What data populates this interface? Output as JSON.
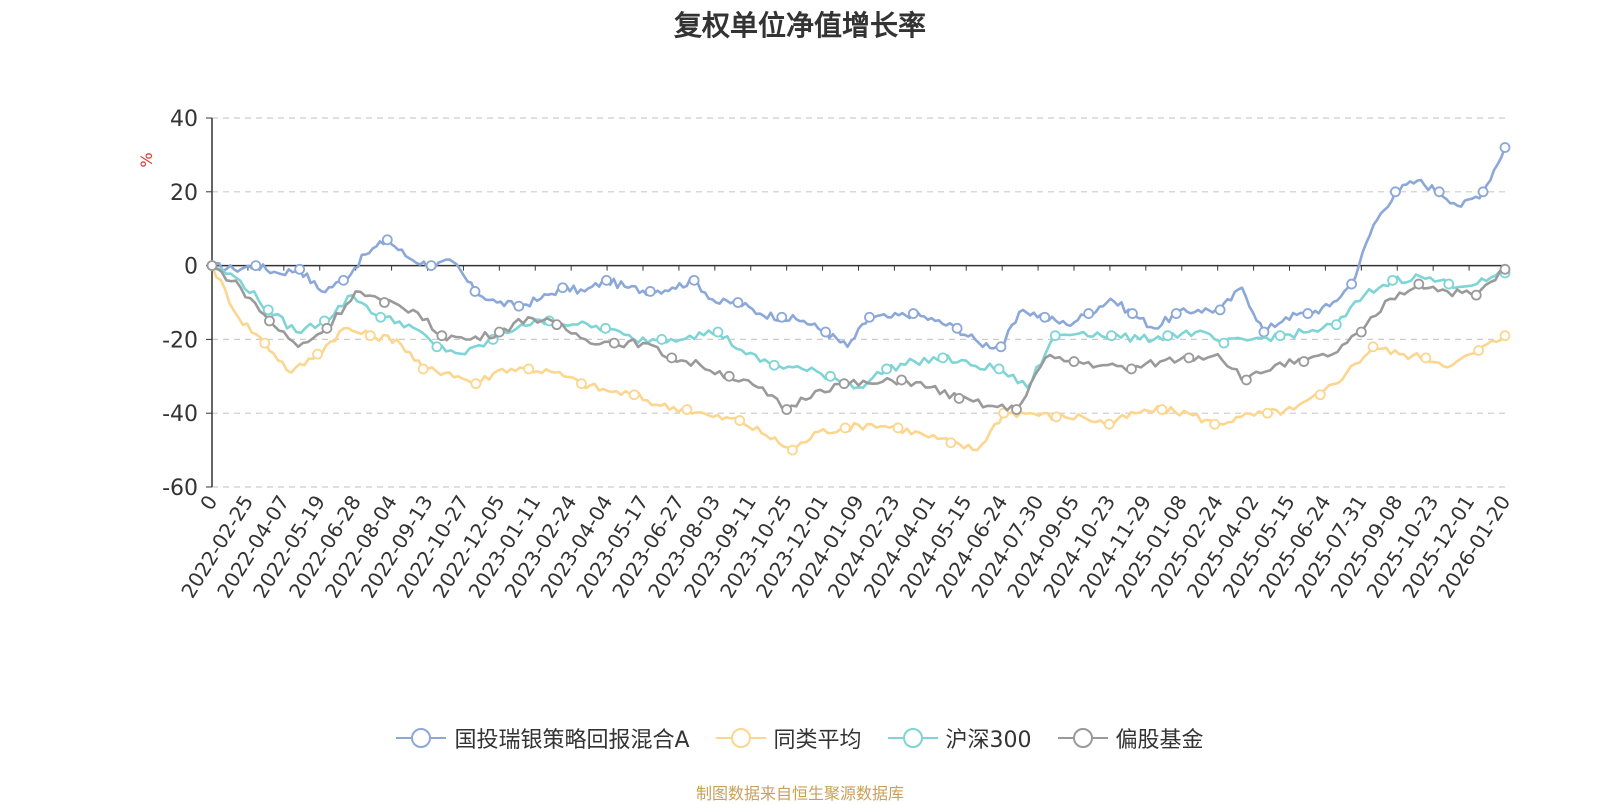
{
  "chart_data": {
    "type": "line",
    "title": "复权单位净值增长率",
    "ylabel": "%",
    "xlabel": "",
    "ylim": [
      -60,
      40
    ],
    "yticks": [
      40,
      20,
      0,
      -20,
      -40,
      -60
    ],
    "xtick_labels": [
      "0",
      "2022-02-25",
      "2022-04-07",
      "2022-05-19",
      "2022-06-28",
      "2022-08-04",
      "2022-09-13",
      "2022-10-27",
      "2022-12-05",
      "2023-01-11",
      "2023-02-24",
      "2023-04-04",
      "2023-05-17",
      "2023-06-27",
      "2023-08-03",
      "2023-09-11",
      "2023-10-25",
      "2023-12-01",
      "2024-01-09",
      "2024-02-23",
      "2024-04-01",
      "2024-05-15",
      "2024-06-24",
      "2024-07-30",
      "2024-09-05",
      "2024-10-23",
      "2024-11-29",
      "2025-01-08",
      "2025-02-24",
      "2025-04-02",
      "2025-05-15",
      "2025-06-24",
      "2025-07-31",
      "2025-09-08",
      "2025-10-23",
      "2025-12-01",
      "2026-01-20"
    ],
    "grid": true,
    "legend_position": "bottom",
    "series": [
      {
        "name": "国投瑞银策略回报混合A",
        "color": "#8ca8d8",
        "values": [
          0,
          -1,
          0,
          -2,
          -1,
          -7,
          -4,
          3,
          7,
          2,
          0,
          1,
          -7,
          -10,
          -11,
          -9,
          -6,
          -7,
          -4,
          -6,
          -7,
          -6,
          -4,
          -10,
          -10,
          -13,
          -14,
          -15,
          -18,
          -22,
          -14,
          -14,
          -13,
          -15,
          -17,
          -21,
          -22,
          -12,
          -14,
          -16,
          -13,
          -9,
          -13,
          -17,
          -13,
          -12,
          -12,
          -6,
          -18,
          -14,
          -13,
          -11,
          -5,
          11,
          20,
          23,
          20,
          16,
          20,
          32
        ]
      },
      {
        "name": "同类平均",
        "color": "#fcd68f",
        "values": [
          0,
          -14,
          -21,
          -29,
          -24,
          -17,
          -19,
          -20,
          -28,
          -29,
          -32,
          -28,
          -28,
          -29,
          -32,
          -34,
          -35,
          -38,
          -39,
          -41,
          -42,
          -46,
          -50,
          -45,
          -44,
          -43,
          -44,
          -46,
          -48,
          -50,
          -40,
          -40,
          -41,
          -41,
          -43,
          -40,
          -39,
          -40,
          -43,
          -41,
          -40,
          -39,
          -35,
          -29,
          -22,
          -24,
          -25,
          -27,
          -23,
          -19
        ]
      },
      {
        "name": "沪深300",
        "color": "#7fd4d6",
        "values": [
          0,
          -4,
          -12,
          -18,
          -15,
          -8,
          -14,
          -16,
          -22,
          -24,
          -20,
          -16,
          -15,
          -16,
          -17,
          -20,
          -20,
          -19,
          -18,
          -24,
          -27,
          -28,
          -30,
          -33,
          -28,
          -26,
          -25,
          -27,
          -28,
          -33,
          -19,
          -18,
          -19,
          -20,
          -19,
          -18,
          -21,
          -20,
          -19,
          -18,
          -16,
          -8,
          -4,
          -3,
          -5,
          -5,
          -2
        ]
      },
      {
        "name": "偏股基金",
        "color": "#9a9a9a",
        "values": [
          0,
          -6,
          -15,
          -22,
          -17,
          -7,
          -10,
          -12,
          -19,
          -20,
          -18,
          -14,
          -16,
          -20,
          -21,
          -21,
          -25,
          -27,
          -30,
          -33,
          -39,
          -34,
          -32,
          -32,
          -31,
          -33,
          -36,
          -38,
          -39,
          -25,
          -26,
          -27,
          -28,
          -26,
          -25,
          -24,
          -31,
          -27,
          -26,
          -24,
          -18,
          -9,
          -5,
          -7,
          -8,
          -1
        ]
      }
    ]
  },
  "footer": {
    "source": "制图数据来自恒生聚源数据库"
  }
}
